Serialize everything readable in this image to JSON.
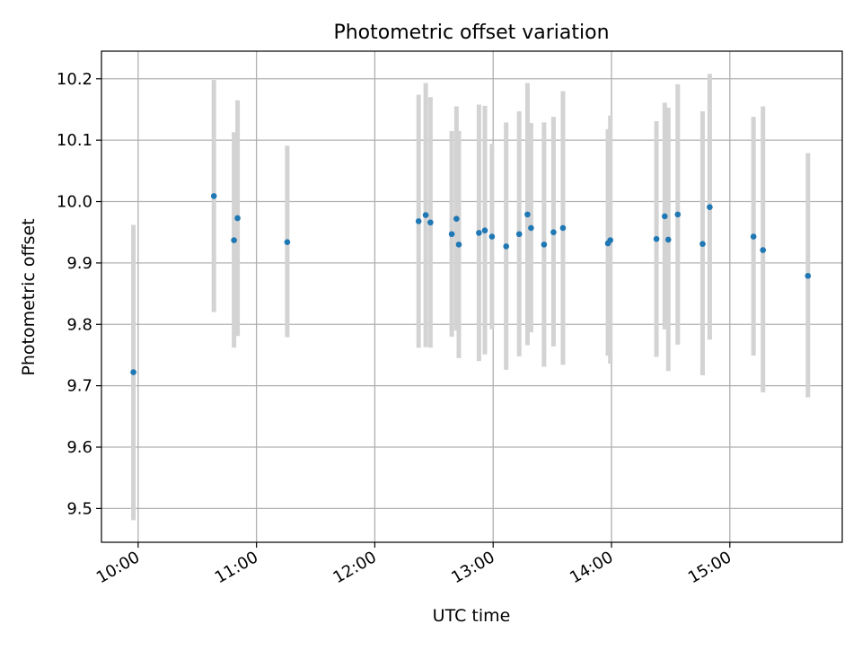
{
  "chart_data": {
    "type": "scatter",
    "title": "Photometric offset variation",
    "xlabel": "UTC time",
    "ylabel": "Photometric offset",
    "grid": true,
    "xlim_hours": [
      9.69,
      15.95
    ],
    "ylim": [
      9.445,
      10.245
    ],
    "x_ticks": [
      {
        "value": 10,
        "label": "10:00"
      },
      {
        "value": 11,
        "label": "11:00"
      },
      {
        "value": 12,
        "label": "12:00"
      },
      {
        "value": 13,
        "label": "13:00"
      },
      {
        "value": 14,
        "label": "14:00"
      },
      {
        "value": 15,
        "label": "15:00"
      }
    ],
    "y_ticks": [
      {
        "value": 9.5,
        "label": "9.5"
      },
      {
        "value": 9.6,
        "label": "9.6"
      },
      {
        "value": 9.7,
        "label": "9.7"
      },
      {
        "value": 9.8,
        "label": "9.8"
      },
      {
        "value": 9.9,
        "label": "9.9"
      },
      {
        "value": 10.0,
        "label": "10.0"
      },
      {
        "value": 10.1,
        "label": "10.1"
      },
      {
        "value": 10.2,
        "label": "10.2"
      }
    ],
    "colors": {
      "point": "#1f77b4",
      "errorbar": "#d3d3d3",
      "grid": "#b0b0b0",
      "axis": "#000000"
    },
    "series": [
      {
        "name": "offset",
        "points": [
          {
            "x": 9.96,
            "y": 9.722,
            "ylo": 9.481,
            "yhi": 9.962
          },
          {
            "x": 10.64,
            "y": 10.009,
            "ylo": 9.82,
            "yhi": 10.198
          },
          {
            "x": 10.81,
            "y": 9.937,
            "ylo": 9.762,
            "yhi": 10.113
          },
          {
            "x": 10.84,
            "y": 9.973,
            "ylo": 9.781,
            "yhi": 10.165
          },
          {
            "x": 11.26,
            "y": 9.934,
            "ylo": 9.779,
            "yhi": 10.091
          },
          {
            "x": 12.37,
            "y": 9.968,
            "ylo": 9.762,
            "yhi": 10.174
          },
          {
            "x": 12.43,
            "y": 9.978,
            "ylo": 9.763,
            "yhi": 10.193
          },
          {
            "x": 12.47,
            "y": 9.966,
            "ylo": 9.762,
            "yhi": 10.17
          },
          {
            "x": 12.65,
            "y": 9.947,
            "ylo": 9.78,
            "yhi": 10.115
          },
          {
            "x": 12.69,
            "y": 9.972,
            "ylo": 9.79,
            "yhi": 10.155
          },
          {
            "x": 12.71,
            "y": 9.93,
            "ylo": 9.745,
            "yhi": 10.115
          },
          {
            "x": 12.88,
            "y": 9.949,
            "ylo": 9.74,
            "yhi": 10.158
          },
          {
            "x": 12.93,
            "y": 9.953,
            "ylo": 9.751,
            "yhi": 10.156
          },
          {
            "x": 12.99,
            "y": 9.943,
            "ylo": 9.792,
            "yhi": 10.094
          },
          {
            "x": 13.11,
            "y": 9.927,
            "ylo": 9.726,
            "yhi": 10.129
          },
          {
            "x": 13.22,
            "y": 9.947,
            "ylo": 9.748,
            "yhi": 10.147
          },
          {
            "x": 13.29,
            "y": 9.979,
            "ylo": 9.766,
            "yhi": 10.193
          },
          {
            "x": 13.32,
            "y": 9.957,
            "ylo": 9.787,
            "yhi": 10.128
          },
          {
            "x": 13.43,
            "y": 9.93,
            "ylo": 9.731,
            "yhi": 10.129
          },
          {
            "x": 13.51,
            "y": 9.95,
            "ylo": 9.764,
            "yhi": 10.138
          },
          {
            "x": 13.59,
            "y": 9.957,
            "ylo": 9.734,
            "yhi": 10.18
          },
          {
            "x": 13.97,
            "y": 9.932,
            "ylo": 9.749,
            "yhi": 10.118
          },
          {
            "x": 13.99,
            "y": 9.937,
            "ylo": 9.736,
            "yhi": 10.14
          },
          {
            "x": 14.38,
            "y": 9.939,
            "ylo": 9.747,
            "yhi": 10.131
          },
          {
            "x": 14.45,
            "y": 9.976,
            "ylo": 9.792,
            "yhi": 10.161
          },
          {
            "x": 14.48,
            "y": 9.938,
            "ylo": 9.724,
            "yhi": 10.153
          },
          {
            "x": 14.56,
            "y": 9.979,
            "ylo": 9.767,
            "yhi": 10.191
          },
          {
            "x": 14.77,
            "y": 9.931,
            "ylo": 9.717,
            "yhi": 10.147
          },
          {
            "x": 14.83,
            "y": 9.991,
            "ylo": 9.775,
            "yhi": 10.208
          },
          {
            "x": 15.2,
            "y": 9.943,
            "ylo": 9.749,
            "yhi": 10.138
          },
          {
            "x": 15.28,
            "y": 9.921,
            "ylo": 9.689,
            "yhi": 10.155
          },
          {
            "x": 15.66,
            "y": 9.879,
            "ylo": 9.681,
            "yhi": 10.079
          }
        ]
      }
    ]
  }
}
